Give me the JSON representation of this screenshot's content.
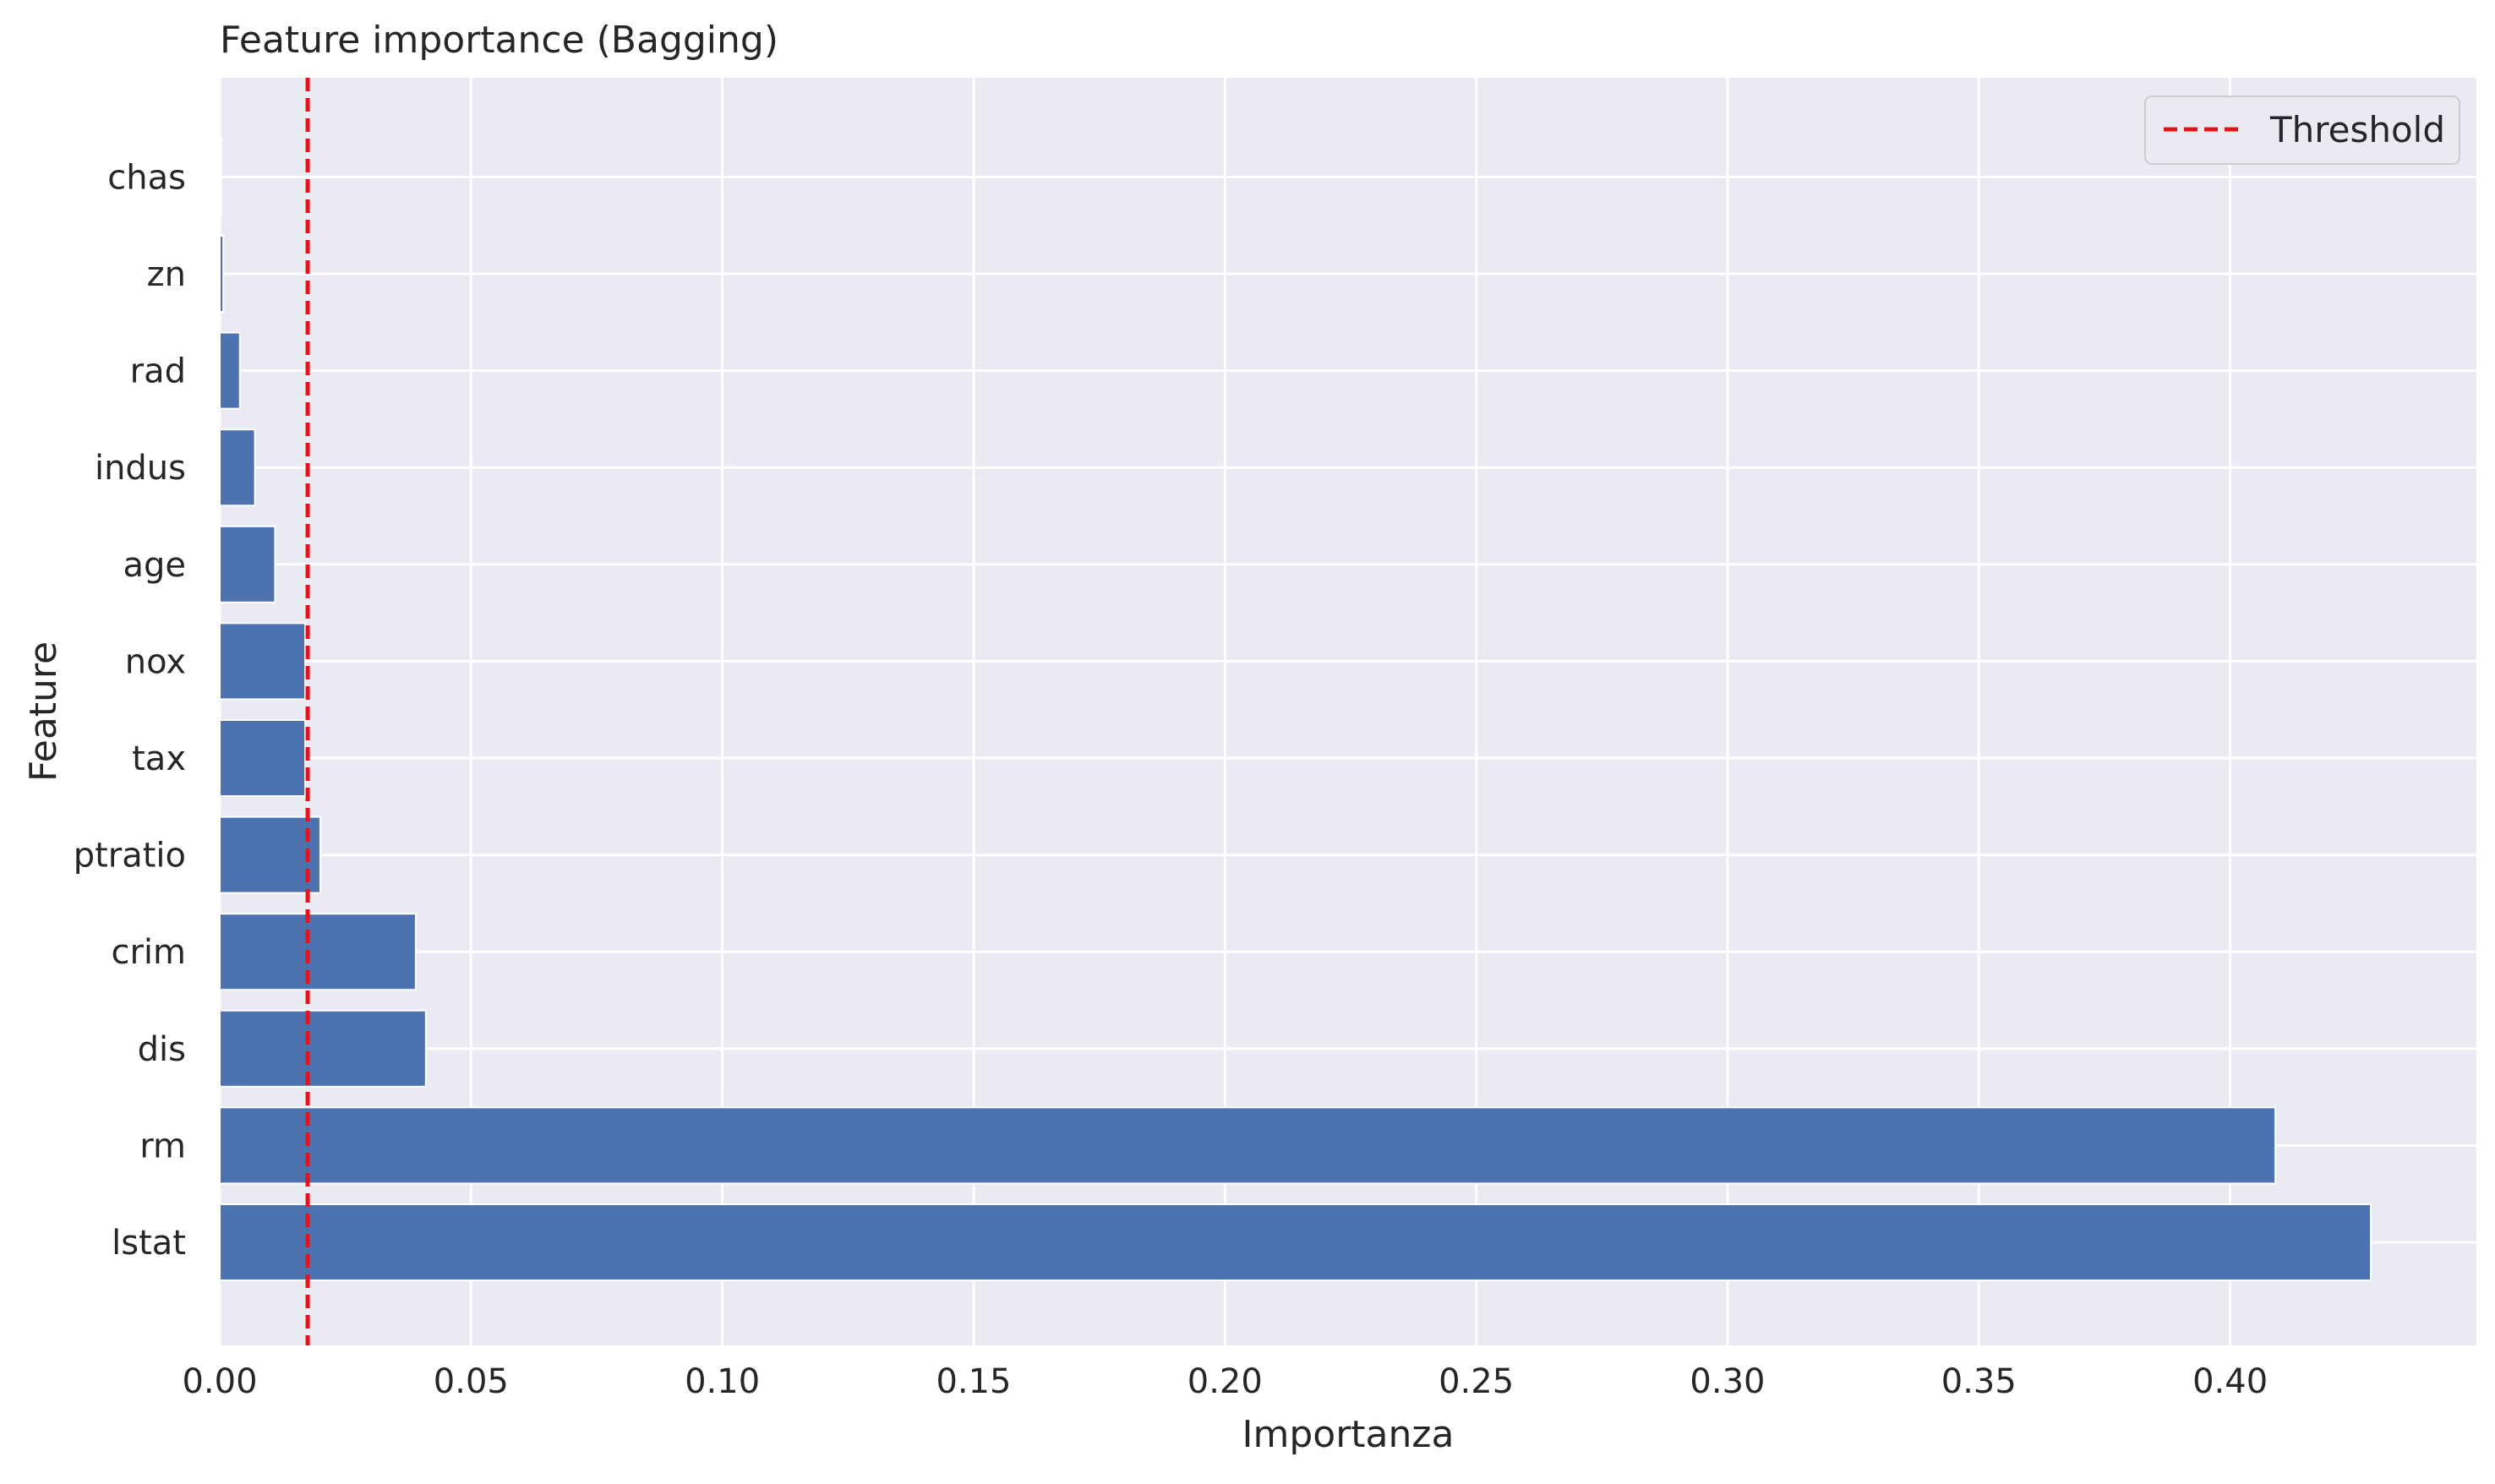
{
  "chart_data": {
    "type": "bar",
    "orientation": "horizontal",
    "title": "Feature importance (Bagging)",
    "xlabel": "Importanza",
    "ylabel": "Feature",
    "xlim": [
      0.0,
      0.449
    ],
    "grid": true,
    "legend_position": "top-right",
    "categories": [
      "lstat",
      "rm",
      "dis",
      "crim",
      "ptratio",
      "tax",
      "nox",
      "age",
      "indus",
      "rad",
      "zn",
      "chas"
    ],
    "values": [
      0.428,
      0.409,
      0.041,
      0.039,
      0.02,
      0.017,
      0.017,
      0.011,
      0.007,
      0.004,
      0.0007,
      0.0003
    ],
    "x_ticks": [
      {
        "value": 0.0,
        "label": "0.00"
      },
      {
        "value": 0.05,
        "label": "0.05"
      },
      {
        "value": 0.1,
        "label": "0.10"
      },
      {
        "value": 0.15,
        "label": "0.15"
      },
      {
        "value": 0.2,
        "label": "0.20"
      },
      {
        "value": 0.25,
        "label": "0.25"
      },
      {
        "value": 0.3,
        "label": "0.30"
      },
      {
        "value": 0.35,
        "label": "0.35"
      },
      {
        "value": 0.4,
        "label": "0.40"
      }
    ],
    "threshold": {
      "value": 0.0175,
      "label": "Threshold"
    },
    "colors": {
      "bar": "#4c72b0",
      "threshold": "#e4141b",
      "plot_background": "#eaeaf2",
      "grid": "#ffffff"
    }
  }
}
